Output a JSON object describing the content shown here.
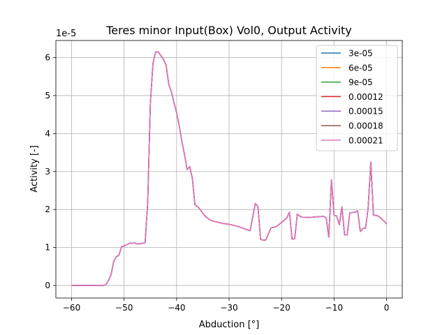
{
  "chart_data": {
    "type": "line",
    "title": "Teres minor Input(Box) Vol0, Output Activity",
    "xlabel": "Abduction [°]",
    "ylabel": "Activity [-]",
    "y_offset_label": "1e-5",
    "xlim": [
      -63.0,
      3.0
    ],
    "ylim": [
      -0.33,
      6.45
    ],
    "x_ticks": [
      -60,
      -50,
      -40,
      -30,
      -20,
      -10,
      0
    ],
    "x_tick_labels": [
      "−60",
      "−50",
      "−40",
      "−30",
      "−20",
      "−10",
      "0"
    ],
    "y_ticks": [
      0,
      1,
      2,
      3,
      4,
      5,
      6
    ],
    "y_tick_labels": [
      "0",
      "1",
      "2",
      "3",
      "4",
      "5",
      "6"
    ],
    "grid": true,
    "legend_position": "top-right",
    "x": [
      -60,
      -59,
      -58,
      -57,
      -56,
      -55,
      -54,
      -53.5,
      -53,
      -52.5,
      -52,
      -51.5,
      -51,
      -50.5,
      -50,
      -49,
      -48,
      -47.5,
      -47,
      -46,
      -45.5,
      -45,
      -44.5,
      -44,
      -43.5,
      -43,
      -42.5,
      -42,
      -41.5,
      -41,
      -40.5,
      -40,
      -39.5,
      -39,
      -38.5,
      -38,
      -37.5,
      -37,
      -36.5,
      -36,
      -35.5,
      -35,
      -34.5,
      -34,
      -33.5,
      -33,
      -32,
      -31,
      -30,
      -29,
      -28,
      -27,
      -26,
      -25,
      -24.5,
      -24,
      -23.5,
      -23,
      -22,
      -21.5,
      -21,
      -20,
      -19,
      -18.5,
      -18,
      -17.5,
      -17,
      -16.5,
      -16,
      -15,
      -14,
      -13,
      -12,
      -11.5,
      -11,
      -10.5,
      -10,
      -9.5,
      -9,
      -8.5,
      -8,
      -7.5,
      -7,
      -6,
      -5.5,
      -5,
      -4.5,
      -4,
      -3.5,
      -3,
      -2.5,
      -2,
      -1.5,
      -1,
      -0.5,
      0
    ],
    "series": [
      {
        "name": "3e-05",
        "color": "#1f77b4"
      },
      {
        "name": "6e-05",
        "color": "#ff7f0e"
      },
      {
        "name": "9e-05",
        "color": "#2ca02c"
      },
      {
        "name": "0.00012",
        "color": "#d62728"
      },
      {
        "name": "0.00015",
        "color": "#9467bd"
      },
      {
        "name": "0.00018",
        "color": "#8c564b"
      },
      {
        "name": "0.00021",
        "color": "#e377c2",
        "values": [
          0,
          0,
          0,
          0,
          0,
          0,
          0,
          0.02,
          0.12,
          0.28,
          0.62,
          0.76,
          0.79,
          1.02,
          1.04,
          1.11,
          1.12,
          1.09,
          1.1,
          1.12,
          2.2,
          4.8,
          5.85,
          6.15,
          6.15,
          6.05,
          5.95,
          5.8,
          5.3,
          5.1,
          4.82,
          4.55,
          4.2,
          3.8,
          3.45,
          3.05,
          3.13,
          2.82,
          2.12,
          2.08,
          2.0,
          1.9,
          1.82,
          1.76,
          1.72,
          1.69,
          1.66,
          1.63,
          1.61,
          1.58,
          1.54,
          1.49,
          1.44,
          2.16,
          2.08,
          1.22,
          1.19,
          1.2,
          1.52,
          1.53,
          1.55,
          1.66,
          1.78,
          1.93,
          1.22,
          1.23,
          1.88,
          1.82,
          1.8,
          1.79,
          1.8,
          1.81,
          1.82,
          1.78,
          1.27,
          2.78,
          1.85,
          1.83,
          1.6,
          2.07,
          1.33,
          1.33,
          1.91,
          1.93,
          1.96,
          1.42,
          1.5,
          1.51,
          2.05,
          3.25,
          1.85,
          1.85,
          1.82,
          1.76,
          1.7,
          1.62
        ]
      }
    ]
  }
}
